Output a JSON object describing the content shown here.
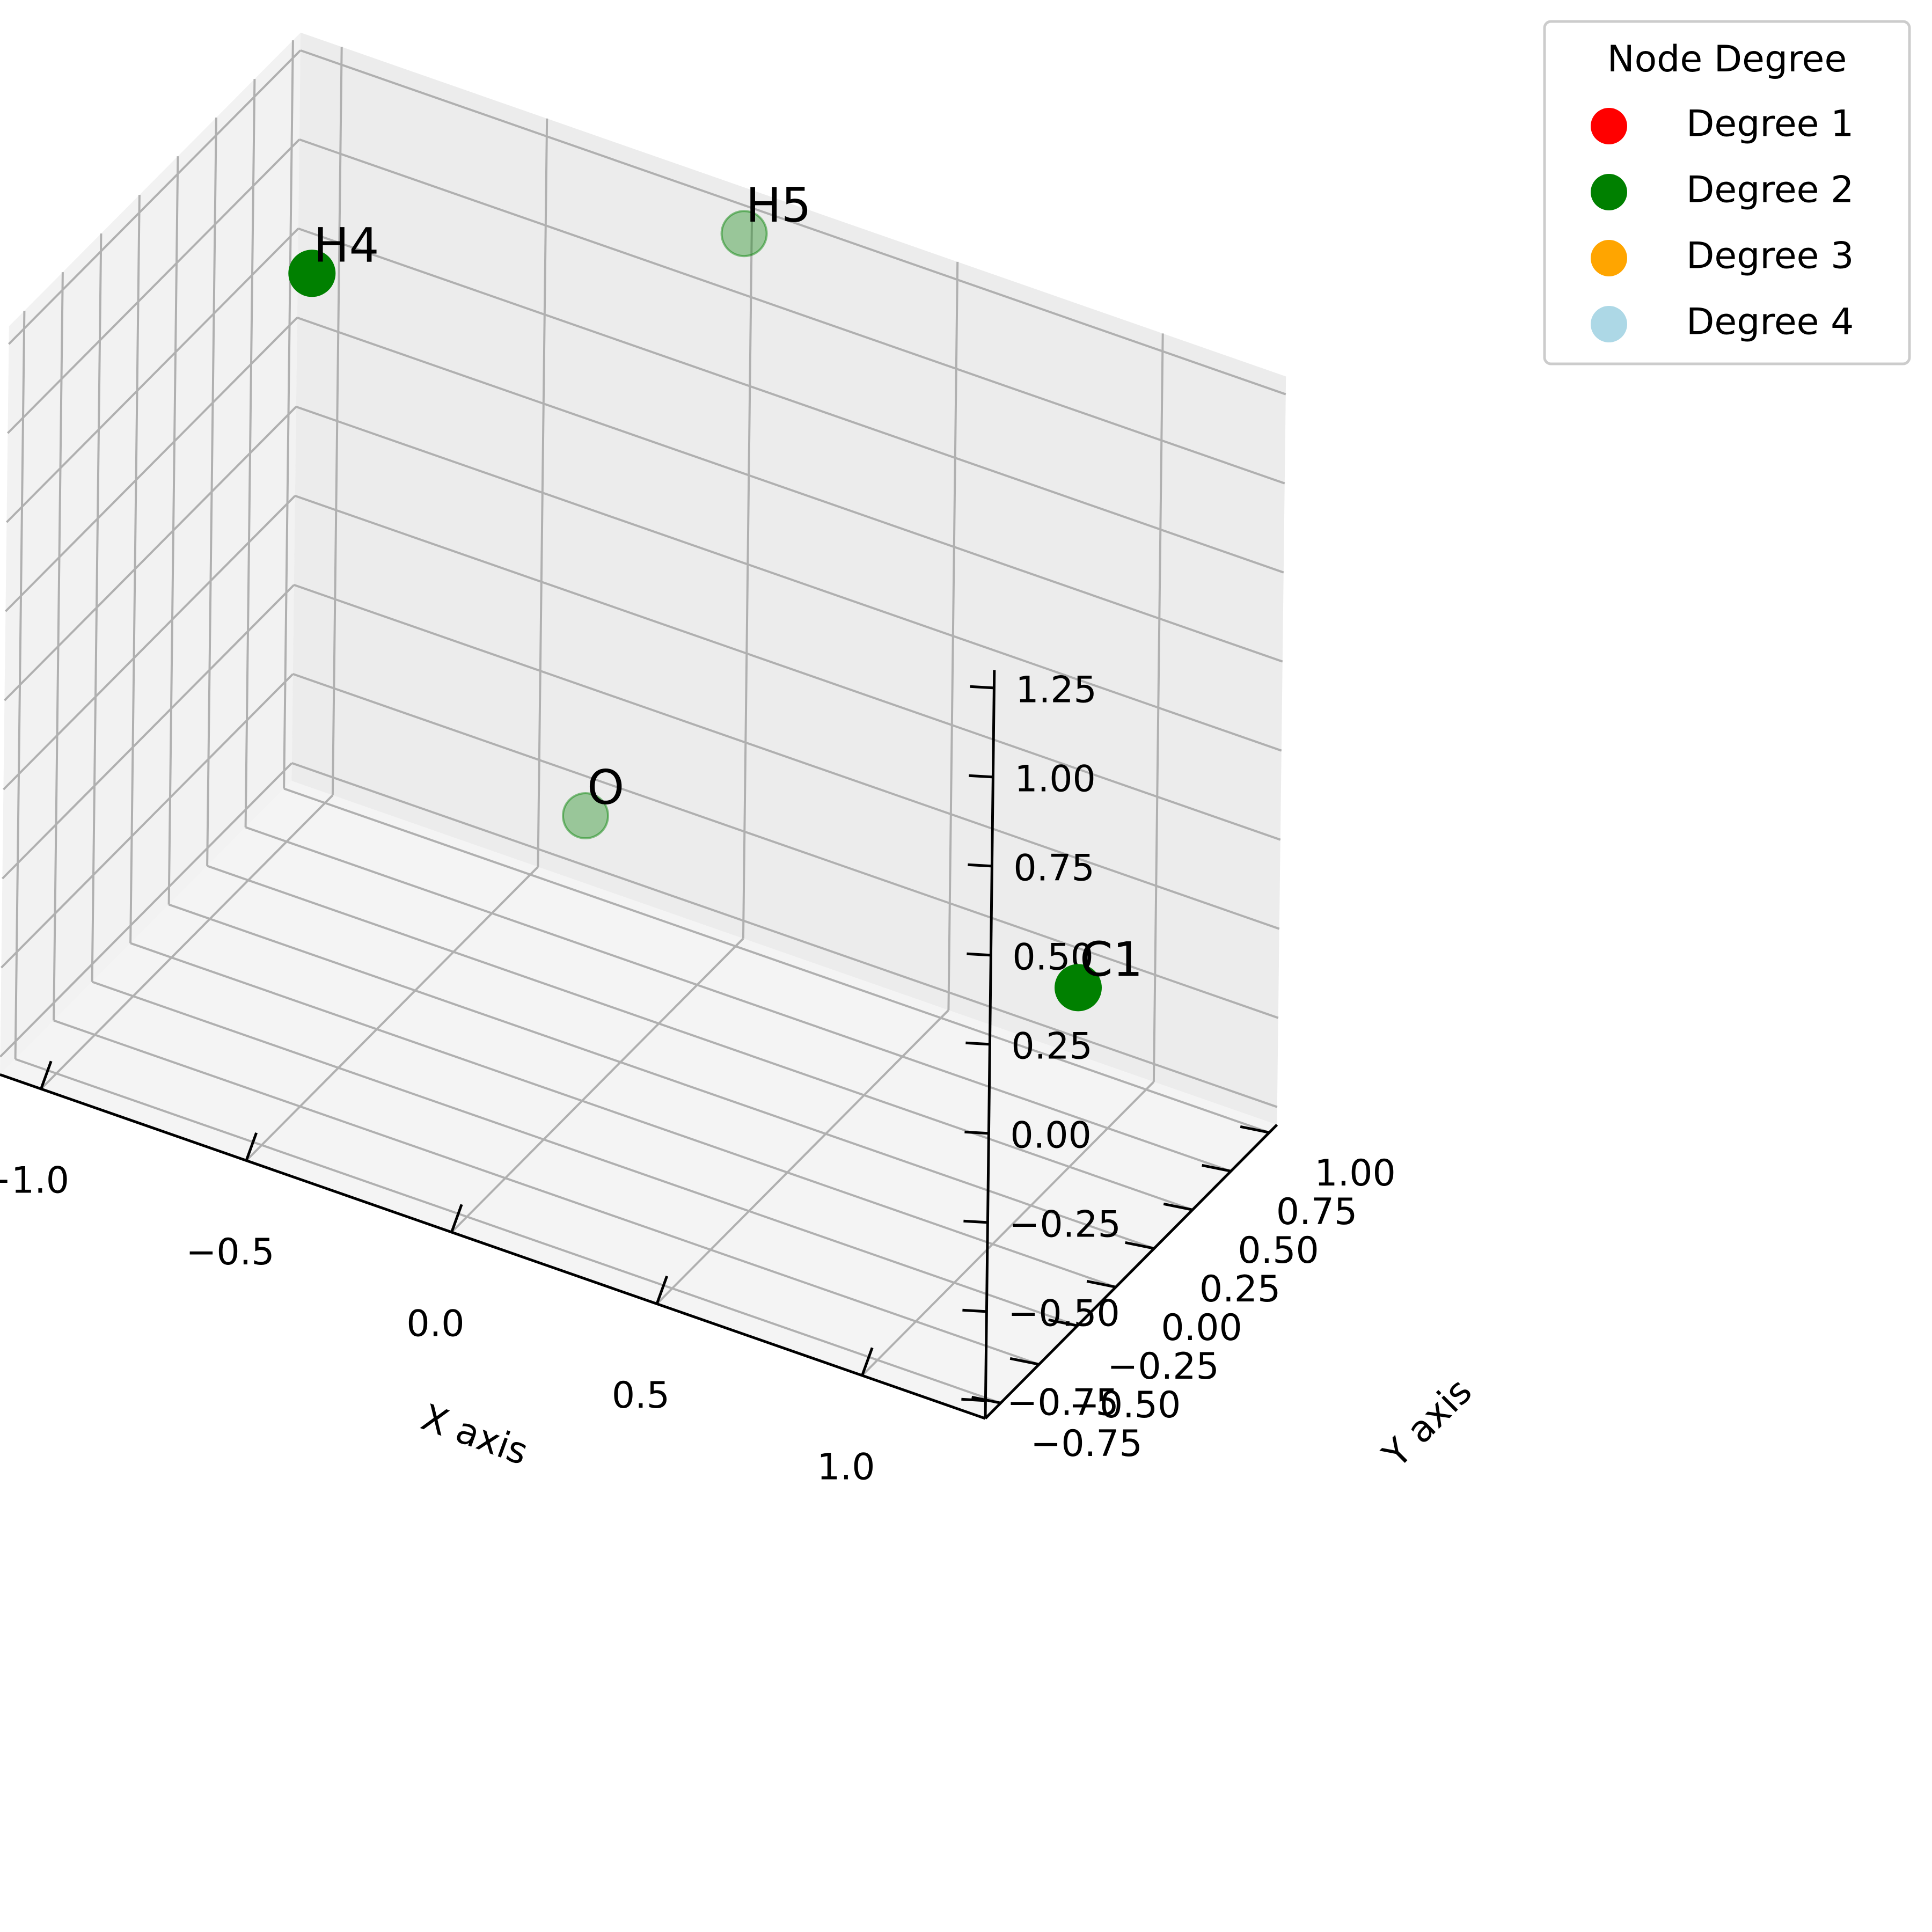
{
  "chart_data": {
    "type": "scatter",
    "projection": "3d",
    "xlabel": "X axis",
    "ylabel": "Y axis",
    "zlabel": "",
    "xlim": [
      -1.1,
      1.3
    ],
    "ylim": [
      -0.85,
      1.05
    ],
    "zlim": [
      -0.8,
      1.3
    ],
    "xticks": [
      -1.0,
      -0.5,
      0.0,
      0.5,
      1.0
    ],
    "xtick_labels": [
      "−1.0",
      "−0.5",
      "0.0",
      "0.5",
      "1.0"
    ],
    "yticks": [
      -0.75,
      -0.5,
      -0.25,
      0.0,
      0.25,
      0.5,
      0.75,
      1.0
    ],
    "ytick_labels": [
      "−0.75",
      "−0.50",
      "−0.25",
      "0.00",
      "0.25",
      "0.50",
      "0.75",
      "1.00"
    ],
    "zticks": [
      -0.75,
      -0.5,
      -0.25,
      0.0,
      0.25,
      0.5,
      0.75,
      1.0,
      1.25
    ],
    "ztick_labels": [
      "−0.75",
      "−0.50",
      "−0.25",
      "0.00",
      "0.25",
      "0.50",
      "0.75",
      "1.00",
      "1.25"
    ],
    "grid": true,
    "points": [
      {
        "label": "O",
        "x": 0.0,
        "y": 0.0,
        "z": 0.0,
        "color": "#008000",
        "depth_faded": true
      },
      {
        "label": "H4",
        "x": -0.9,
        "y": 0.6,
        "z": 0.9,
        "color": "#008000",
        "depth_faded": false
      },
      {
        "label": "H5",
        "x": 0.0,
        "y": 1.0,
        "z": 1.2,
        "color": "#008000",
        "depth_faded": true
      },
      {
        "label": "C1",
        "x": 1.2,
        "y": 0.0,
        "z": 0.0,
        "color": "#008000",
        "depth_faded": false
      }
    ],
    "legend": {
      "title": "Node Degree",
      "placement": "top-right",
      "entries": [
        {
          "label": "Degree 1",
          "color": "#ff0000"
        },
        {
          "label": "Degree 2",
          "color": "#008000"
        },
        {
          "label": "Degree 3",
          "color": "#ffa500"
        },
        {
          "label": "Degree 4",
          "color": "#add8e6"
        }
      ]
    }
  }
}
